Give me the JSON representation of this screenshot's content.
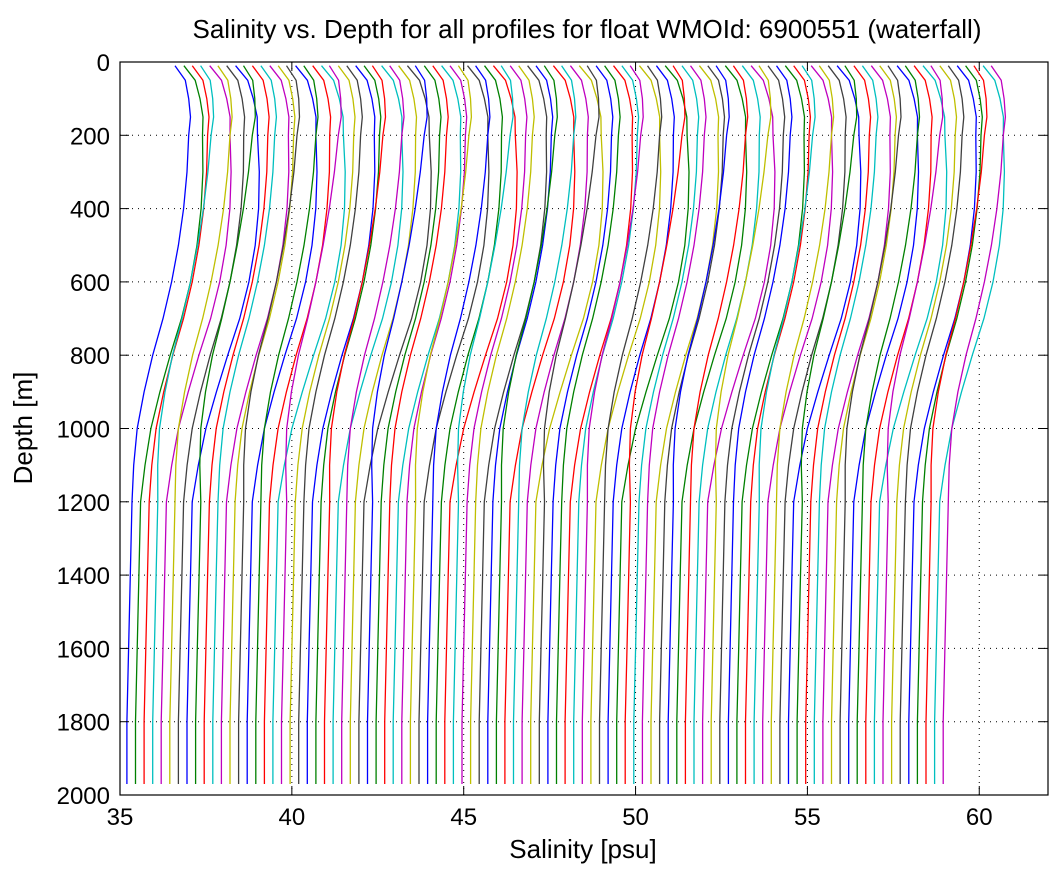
{
  "chart_data": {
    "type": "line",
    "title": "Salinity vs. Depth for all profiles for float WMOId: 6900551 (waterfall)",
    "xlabel": "Salinity [psu]",
    "ylabel": "Depth [m]",
    "xlim": [
      35,
      62
    ],
    "ylim": [
      0,
      2000
    ],
    "y_reversed": true,
    "grid": "dotted",
    "xticks": [
      35,
      40,
      45,
      50,
      55,
      60
    ],
    "yticks": [
      0,
      200,
      400,
      600,
      800,
      1000,
      1200,
      1400,
      1600,
      1800,
      2000
    ],
    "n_profiles": 96,
    "profile_offset_psu": 0.25,
    "series_colors": [
      "#0000ff",
      "#008000",
      "#ff0000",
      "#00bfbf",
      "#bf00bf",
      "#bfbf00",
      "#404040"
    ],
    "depth_levels": [
      10,
      50,
      100,
      150,
      200,
      300,
      400,
      500,
      600,
      700,
      800,
      900,
      1000,
      1100,
      1200,
      1400,
      1600,
      1800,
      1970
    ],
    "base_profile_salinity": [
      36.6,
      36.9,
      37.0,
      37.05,
      37.0,
      36.95,
      36.85,
      36.7,
      36.5,
      36.25,
      35.95,
      35.7,
      35.5,
      35.4,
      35.35,
      35.3,
      35.25,
      35.2,
      35.2
    ]
  }
}
